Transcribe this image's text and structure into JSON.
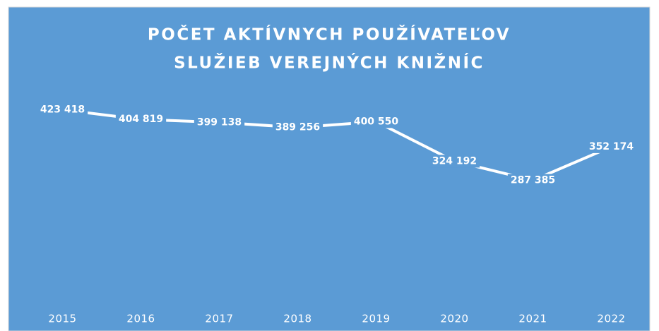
{
  "chart_data": {
    "type": "line",
    "title": [
      "POČET AKTÍVNYCH POUŽÍVATEĽOV",
      "SLUŽIEB VEREJNÝCH KNIŽNÍC"
    ],
    "categories": [
      "2015",
      "2016",
      "2017",
      "2018",
      "2019",
      "2020",
      "2021",
      "2022"
    ],
    "values": [
      423418,
      404819,
      399138,
      389256,
      400550,
      324192,
      287385,
      352174
    ],
    "value_labels": [
      "423 418",
      "404 819",
      "399 138",
      "389 256",
      "400 550",
      "324 192",
      "287 385",
      "352 174"
    ],
    "color": "#ffffff",
    "background": "#5b9bd5",
    "ylim": [
      50000,
      450000
    ]
  }
}
